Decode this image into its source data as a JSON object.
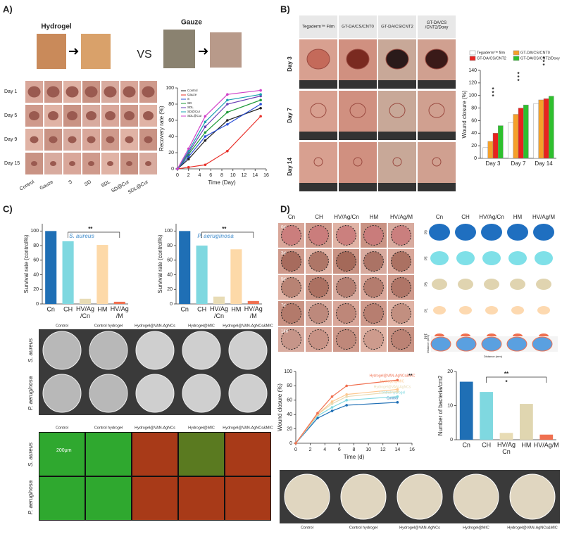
{
  "panels": {
    "a": "A)",
    "b": "B)",
    "c": "C)",
    "d": "D)"
  },
  "panel_a": {
    "hydrogel": "Hydrogel",
    "vs": "VS",
    "gauze": "Gauze",
    "rows": [
      "Day 1",
      "Day 5",
      "Day 9",
      "Day 15"
    ],
    "columns": [
      "Control",
      "Gauze",
      "S",
      "SD",
      "SDL",
      "SD@Cur",
      "SDL@Cur"
    ]
  },
  "panel_b": {
    "columns": [
      "Tegaderm™ Film",
      "GT-DA/CS/CNT0",
      "GT-DA/CS/CNT2",
      "GT-DA/CS /CNT2/Doxy"
    ],
    "rows": [
      "Day 3",
      "Day 7",
      "Day 14"
    ]
  },
  "panel_c": {
    "plate_rows": [
      "S. aureus",
      "P. aeruginosa"
    ],
    "plate_columns": [
      "Control",
      "Control hydrogel",
      "Hydrogel@VAN-AgNCs",
      "Hydrogel@MIC",
      "Hydrogel@VAN-AgNCs&MIC"
    ],
    "scale": "200μm"
  },
  "panel_d": {
    "columns": [
      "Cn",
      "CH",
      "HV/Ag/Cn",
      "HM",
      "HV/Ag/M"
    ],
    "rows": [
      "0d",
      "3d",
      "5d",
      "7d",
      "14d"
    ],
    "distance_x": "Distance (mm)",
    "distance_y": "Distance (mm)",
    "plate_columns": [
      "Control",
      "Control hydrogel",
      "Hydrogel@VAN-AgNCs",
      "Hydrogel@MIC",
      "Hydrogel@VAN-AgNCs&MIC"
    ]
  },
  "chart_data": [
    {
      "type": "line",
      "x_label": "Time (Day)",
      "y_label": "Recovery rate (%)",
      "x": [
        0,
        2,
        5,
        9,
        15
      ],
      "xlim": [
        0,
        16
      ],
      "xticks": [
        0,
        2,
        4,
        6,
        8,
        10,
        12,
        14,
        16
      ],
      "ylim": [
        0,
        100
      ],
      "yticks": [
        0,
        20,
        40,
        60,
        80,
        100
      ],
      "series": [
        {
          "name": "Control",
          "color": "#222222",
          "values": [
            0,
            12,
            35,
            60,
            75
          ]
        },
        {
          "name": "Gauze",
          "color": "#e8302a",
          "values": [
            0,
            2,
            5,
            22,
            65
          ]
        },
        {
          "name": "S",
          "color": "#2a4fd8",
          "values": [
            0,
            15,
            40,
            55,
            80
          ]
        },
        {
          "name": "SD",
          "color": "#1f9a3a",
          "values": [
            0,
            18,
            45,
            70,
            85
          ]
        },
        {
          "name": "SDL",
          "color": "#6a3fb5",
          "values": [
            0,
            20,
            52,
            80,
            90
          ]
        },
        {
          "name": "SD@Cur",
          "color": "#1aa0b0",
          "values": [
            0,
            22,
            58,
            85,
            92
          ]
        },
        {
          "name": "SDL@Cur",
          "color": "#d040c8",
          "values": [
            0,
            25,
            65,
            92,
            97
          ]
        }
      ]
    },
    {
      "type": "bar",
      "y_label": "Wound closure (%)",
      "categories": [
        "Day 3",
        "Day 7",
        "Day 14"
      ],
      "ylim": [
        0,
        140
      ],
      "yticks": [
        0,
        20,
        40,
        60,
        80,
        100,
        120,
        140
      ],
      "series": [
        {
          "name": "Tegaderm™ film",
          "color": "#ffffff",
          "values": [
            17,
            57,
            87
          ]
        },
        {
          "name": "GT-DA/CS/CNT0",
          "color": "#f5a02a",
          "values": [
            27,
            70,
            93
          ]
        },
        {
          "name": "GT-DA/CS/CNT2",
          "color": "#e8231f",
          "values": [
            40,
            80,
            95
          ]
        },
        {
          "name": "GT-DA/CS/CNT2/Doxy",
          "color": "#2ec02e",
          "values": [
            52,
            85,
            99
          ]
        }
      ],
      "annotations": [
        "*",
        "*",
        "*",
        "*",
        "*",
        "*",
        "*",
        "*",
        "*"
      ]
    },
    {
      "type": "bar",
      "y_label": "Survival rate (control%)",
      "categories": [
        "Cn",
        "CH",
        "HV/Ag /Cn",
        "HM",
        "HV/Ag /M"
      ],
      "values": [
        100,
        86,
        7,
        81,
        3
      ],
      "colors": [
        "#1f6fb5",
        "#7fd8e0",
        "#e8dcb5",
        "#fdd9a8",
        "#f07050"
      ],
      "ylim": [
        0,
        110
      ],
      "yticks": [
        0,
        20,
        40,
        60,
        80,
        100
      ],
      "annotations": [
        "S. aureus",
        "**"
      ]
    },
    {
      "type": "bar",
      "y_label": "Survival rate (control%)",
      "categories": [
        "Cn",
        "CH",
        "HV/Ag /Cn",
        "HM",
        "HV/Ag /M"
      ],
      "values": [
        100,
        80,
        10,
        75,
        4
      ],
      "colors": [
        "#1f6fb5",
        "#7fd8e0",
        "#e8dcb5",
        "#fdd9a8",
        "#f07050"
      ],
      "ylim": [
        0,
        110
      ],
      "yticks": [
        0,
        20,
        40,
        60,
        80,
        100
      ],
      "annotations": [
        "P. aeruginosa",
        "**"
      ]
    },
    {
      "type": "line",
      "x_label": "Time (d)",
      "y_label": "Wound closure (%)",
      "x": [
        0,
        3,
        5,
        7,
        14
      ],
      "xlim": [
        0,
        16
      ],
      "xticks": [
        0,
        2,
        4,
        6,
        8,
        10,
        12,
        14,
        16
      ],
      "ylim": [
        0,
        100
      ],
      "yticks": [
        0,
        20,
        40,
        60,
        80,
        100
      ],
      "series": [
        {
          "name": "Control",
          "color": "#1f6fb5",
          "values": [
            0,
            35,
            45,
            53,
            57
          ]
        },
        {
          "name": "Control hydrogel",
          "color": "#7fd8e0",
          "values": [
            0,
            38,
            50,
            60,
            65
          ]
        },
        {
          "name": "Hydrogel@VAN-AgNCs",
          "color": "#e8dcb5",
          "values": [
            0,
            40,
            55,
            65,
            72
          ]
        },
        {
          "name": "Hydrogel@MIC",
          "color": "#fdc890",
          "values": [
            0,
            40,
            58,
            68,
            75
          ]
        },
        {
          "name": "Hydrogel@VAN-AgNCs&MIC",
          "color": "#f07050",
          "values": [
            0,
            42,
            65,
            80,
            88
          ]
        }
      ],
      "annotations": [
        "**"
      ]
    },
    {
      "type": "bar",
      "y_label": "Number of bacteria/cm2",
      "categories": [
        "Cn",
        "CH",
        "HV/Ag Cn",
        "HM",
        "HV/Ag/M"
      ],
      "values": [
        17,
        14,
        2,
        10.5,
        1.5
      ],
      "colors": [
        "#1f6fb5",
        "#7fd8e0",
        "#e8dcb5",
        "#e0d6b0",
        "#f07050"
      ],
      "ylim": [
        0,
        20
      ],
      "yticks": [
        0,
        10,
        20
      ],
      "annotations": [
        "**",
        "*"
      ]
    }
  ]
}
